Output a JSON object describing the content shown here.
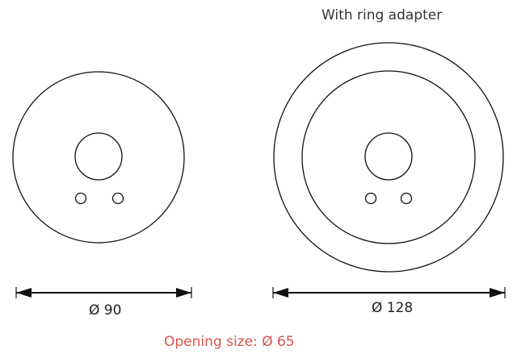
{
  "labels": {
    "ring_adapter": "With ring adapter",
    "dimension_small": "Ø 90",
    "dimension_large": "Ø 128",
    "opening_size": "Opening size: Ø 65"
  },
  "colors": {
    "line": "#111111",
    "text": "#222222",
    "highlight": "#d9534f"
  }
}
